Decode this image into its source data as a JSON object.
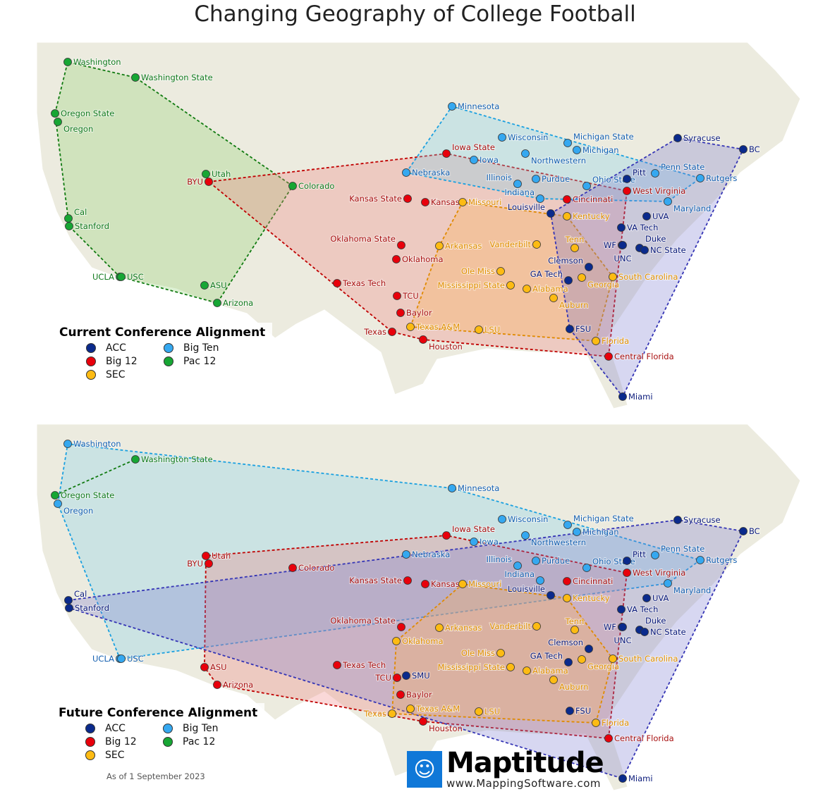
{
  "title": "Changing Geography of College Football",
  "conferences": {
    "ACC": {
      "label": "ACC",
      "color": "#0a2a8c",
      "text": "#0a1a7a",
      "stroke": "#3535b5",
      "fill": "#7c7cd0"
    },
    "Big12": {
      "label": "Big 12",
      "color": "#e8000b",
      "text": "#a81010",
      "stroke": "#c00000",
      "fill": "#ef7f7f"
    },
    "BigTen": {
      "label": "Big Ten",
      "color": "#35a8f0",
      "text": "#1560b0",
      "stroke": "#1aa0e0",
      "fill": "#7fd0ef"
    },
    "Pac12": {
      "label": "Pac 12",
      "color": "#17a634",
      "text": "#127a1e",
      "stroke": "#107a10",
      "fill": "#8fd06f"
    },
    "SEC": {
      "label": "SEC",
      "color": "#fdbb13",
      "text": "#e09000",
      "stroke": "#e08a00",
      "fill": "#ffb04f"
    }
  },
  "maps": [
    {
      "legend_title": "Current Conference Alignment",
      "legend": [
        {
          "conf": "ACC",
          "label": "ACC"
        },
        {
          "conf": "BigTen",
          "label": "Big Ten"
        },
        {
          "conf": "Big12",
          "label": "Big 12"
        },
        {
          "conf": "Pac12",
          "label": "Pac 12"
        },
        {
          "conf": "SEC",
          "label": "SEC"
        }
      ]
    },
    {
      "legend_title": "Future Conference Alignment",
      "legend": [
        {
          "conf": "ACC",
          "label": "ACC"
        },
        {
          "conf": "BigTen",
          "label": "Big Ten"
        },
        {
          "conf": "Big12",
          "label": "Big 12"
        },
        {
          "conf": "Pac12",
          "label": "Pac 12"
        },
        {
          "conf": "SEC",
          "label": "SEC"
        }
      ],
      "as_of": "As of 1 September 2023"
    }
  ],
  "schools": [
    {
      "name": "Washington",
      "current": "Pac12",
      "future": "BigTen"
    },
    {
      "name": "Washington State",
      "current": "Pac12",
      "future": "Pac12"
    },
    {
      "name": "Oregon State",
      "current": "Pac12",
      "future": "Pac12"
    },
    {
      "name": "Oregon",
      "current": "Pac12",
      "future": "BigTen"
    },
    {
      "name": "Utah",
      "current": "Pac12",
      "future": "Big12"
    },
    {
      "name": "Colorado",
      "current": "Pac12",
      "future": "Big12"
    },
    {
      "name": "Cal",
      "current": "Pac12",
      "future": "ACC"
    },
    {
      "name": "Stanford",
      "current": "Pac12",
      "future": "ACC"
    },
    {
      "name": "UCLA",
      "current": "Pac12",
      "future": "BigTen"
    },
    {
      "name": "USC",
      "current": "Pac12",
      "future": "BigTen"
    },
    {
      "name": "ASU",
      "current": "Pac12",
      "future": "Big12"
    },
    {
      "name": "Arizona",
      "current": "Pac12",
      "future": "Big12"
    },
    {
      "name": "BYU",
      "current": "Big12",
      "future": "Big12"
    },
    {
      "name": "Iowa State",
      "current": "Big12",
      "future": "Big12"
    },
    {
      "name": "Kansas State",
      "current": "Big12",
      "future": "Big12"
    },
    {
      "name": "Kansas",
      "current": "Big12",
      "future": "Big12"
    },
    {
      "name": "Oklahoma State",
      "current": "Big12",
      "future": "Big12"
    },
    {
      "name": "Oklahoma",
      "current": "Big12",
      "future": "SEC"
    },
    {
      "name": "Texas Tech",
      "current": "Big12",
      "future": "Big12"
    },
    {
      "name": "TCU",
      "current": "Big12",
      "future": "Big12"
    },
    {
      "name": "Baylor",
      "current": "Big12",
      "future": "Big12"
    },
    {
      "name": "Texas",
      "current": "Big12",
      "future": "SEC"
    },
    {
      "name": "Houston",
      "current": "Big12",
      "future": "Big12"
    },
    {
      "name": "Cincinnati",
      "current": "Big12",
      "future": "Big12"
    },
    {
      "name": "West Virginia",
      "current": "Big12",
      "future": "Big12"
    },
    {
      "name": "Central Florida",
      "current": "Big12",
      "future": "Big12"
    },
    {
      "name": "Minnesota",
      "current": "BigTen",
      "future": "BigTen"
    },
    {
      "name": "Wisconsin",
      "current": "BigTen",
      "future": "BigTen"
    },
    {
      "name": "Michigan State",
      "current": "BigTen",
      "future": "BigTen"
    },
    {
      "name": "Michigan",
      "current": "BigTen",
      "future": "BigTen"
    },
    {
      "name": "Iowa",
      "current": "BigTen",
      "future": "BigTen"
    },
    {
      "name": "Northwestern",
      "current": "BigTen",
      "future": "BigTen"
    },
    {
      "name": "Nebraska",
      "current": "BigTen",
      "future": "BigTen"
    },
    {
      "name": "Illinois",
      "current": "BigTen",
      "future": "BigTen"
    },
    {
      "name": "Purdue",
      "current": "BigTen",
      "future": "BigTen"
    },
    {
      "name": "Indiana",
      "current": "BigTen",
      "future": "BigTen"
    },
    {
      "name": "Ohio State",
      "current": "BigTen",
      "future": "BigTen"
    },
    {
      "name": "Penn State",
      "current": "BigTen",
      "future": "BigTen"
    },
    {
      "name": "Rutgers",
      "current": "BigTen",
      "future": "BigTen"
    },
    {
      "name": "Maryland",
      "current": "BigTen",
      "future": "BigTen"
    },
    {
      "name": "Missouri",
      "current": "SEC",
      "future": "SEC"
    },
    {
      "name": "Kentucky",
      "current": "SEC",
      "future": "SEC"
    },
    {
      "name": "Arkansas",
      "current": "SEC",
      "future": "SEC"
    },
    {
      "name": "Vanderbilt",
      "current": "SEC",
      "future": "SEC"
    },
    {
      "name": "Tenn",
      "current": "SEC",
      "future": "SEC"
    },
    {
      "name": "Ole Miss",
      "current": "SEC",
      "future": "SEC"
    },
    {
      "name": "Mississippi State",
      "current": "SEC",
      "future": "SEC"
    },
    {
      "name": "Alabama",
      "current": "SEC",
      "future": "SEC"
    },
    {
      "name": "Georgia",
      "current": "SEC",
      "future": "SEC"
    },
    {
      "name": "Auburn",
      "current": "SEC",
      "future": "SEC"
    },
    {
      "name": "South Carolina",
      "current": "SEC",
      "future": "SEC"
    },
    {
      "name": "Texas A&M",
      "current": "SEC",
      "future": "SEC"
    },
    {
      "name": "LSU",
      "current": "SEC",
      "future": "SEC"
    },
    {
      "name": "Florida",
      "current": "SEC",
      "future": "SEC"
    },
    {
      "name": "Syracuse",
      "current": "ACC",
      "future": "ACC"
    },
    {
      "name": "BC",
      "current": "ACC",
      "future": "ACC"
    },
    {
      "name": "Pitt",
      "current": "ACC",
      "future": "ACC"
    },
    {
      "name": "Louisville",
      "current": "ACC",
      "future": "ACC"
    },
    {
      "name": "UVA",
      "current": "ACC",
      "future": "ACC"
    },
    {
      "name": "VA Tech",
      "current": "ACC",
      "future": "ACC"
    },
    {
      "name": "Duke",
      "current": "ACC",
      "future": "ACC"
    },
    {
      "name": "WF",
      "current": "ACC",
      "future": "ACC"
    },
    {
      "name": "UNC",
      "current": "ACC",
      "future": "ACC"
    },
    {
      "name": "NC State",
      "current": "ACC",
      "future": "ACC"
    },
    {
      "name": "Clemson",
      "current": "ACC",
      "future": "ACC"
    },
    {
      "name": "GA Tech",
      "current": "ACC",
      "future": "ACC"
    },
    {
      "name": "FSU",
      "current": "ACC",
      "future": "ACC"
    },
    {
      "name": "Miami",
      "current": "ACC",
      "future": "ACC"
    },
    {
      "name": "SMU",
      "current": null,
      "future": "ACC"
    }
  ],
  "logo": {
    "name": "Maptitude",
    "url": "www.MappingSoftware.com"
  }
}
